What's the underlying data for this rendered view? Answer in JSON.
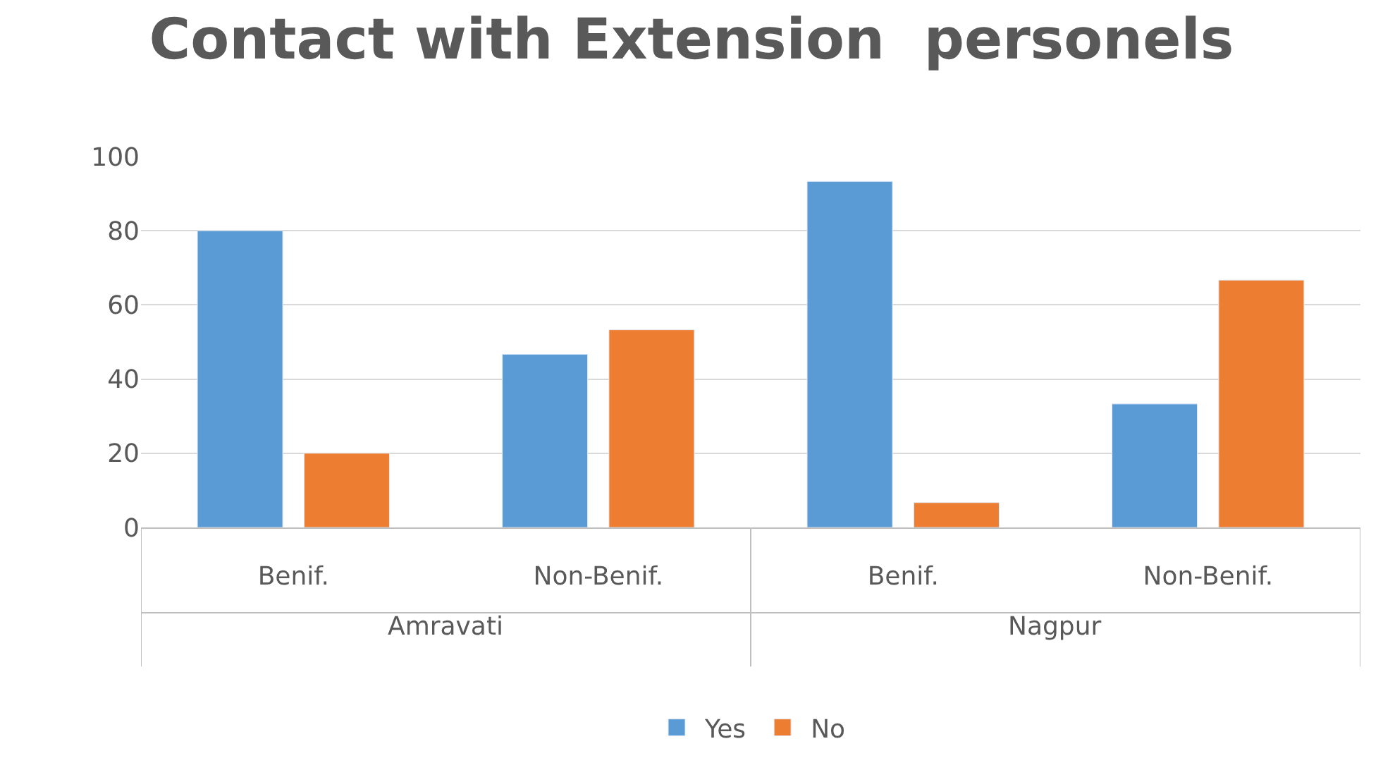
{
  "chart_data": {
    "type": "bar",
    "title": "Contact with Extension  personels",
    "categories": [
      "Benif.",
      "Non-Benif.",
      "Benif.",
      "Non-Benif."
    ],
    "series": [
      {
        "name": "Yes",
        "color": "#5b9bd5",
        "values": [
          80,
          46.7,
          93.3,
          33.3
        ]
      },
      {
        "name": "No",
        "color": "#ed7d31",
        "values": [
          20,
          53.3,
          6.7,
          66.7
        ]
      }
    ],
    "annotations": [
      "Amravati",
      "Nagpur"
    ],
    "ylim": [
      0,
      100
    ],
    "yticks": [
      0,
      20,
      40,
      60,
      80,
      100
    ],
    "grid": "y",
    "legend": "bottom"
  }
}
